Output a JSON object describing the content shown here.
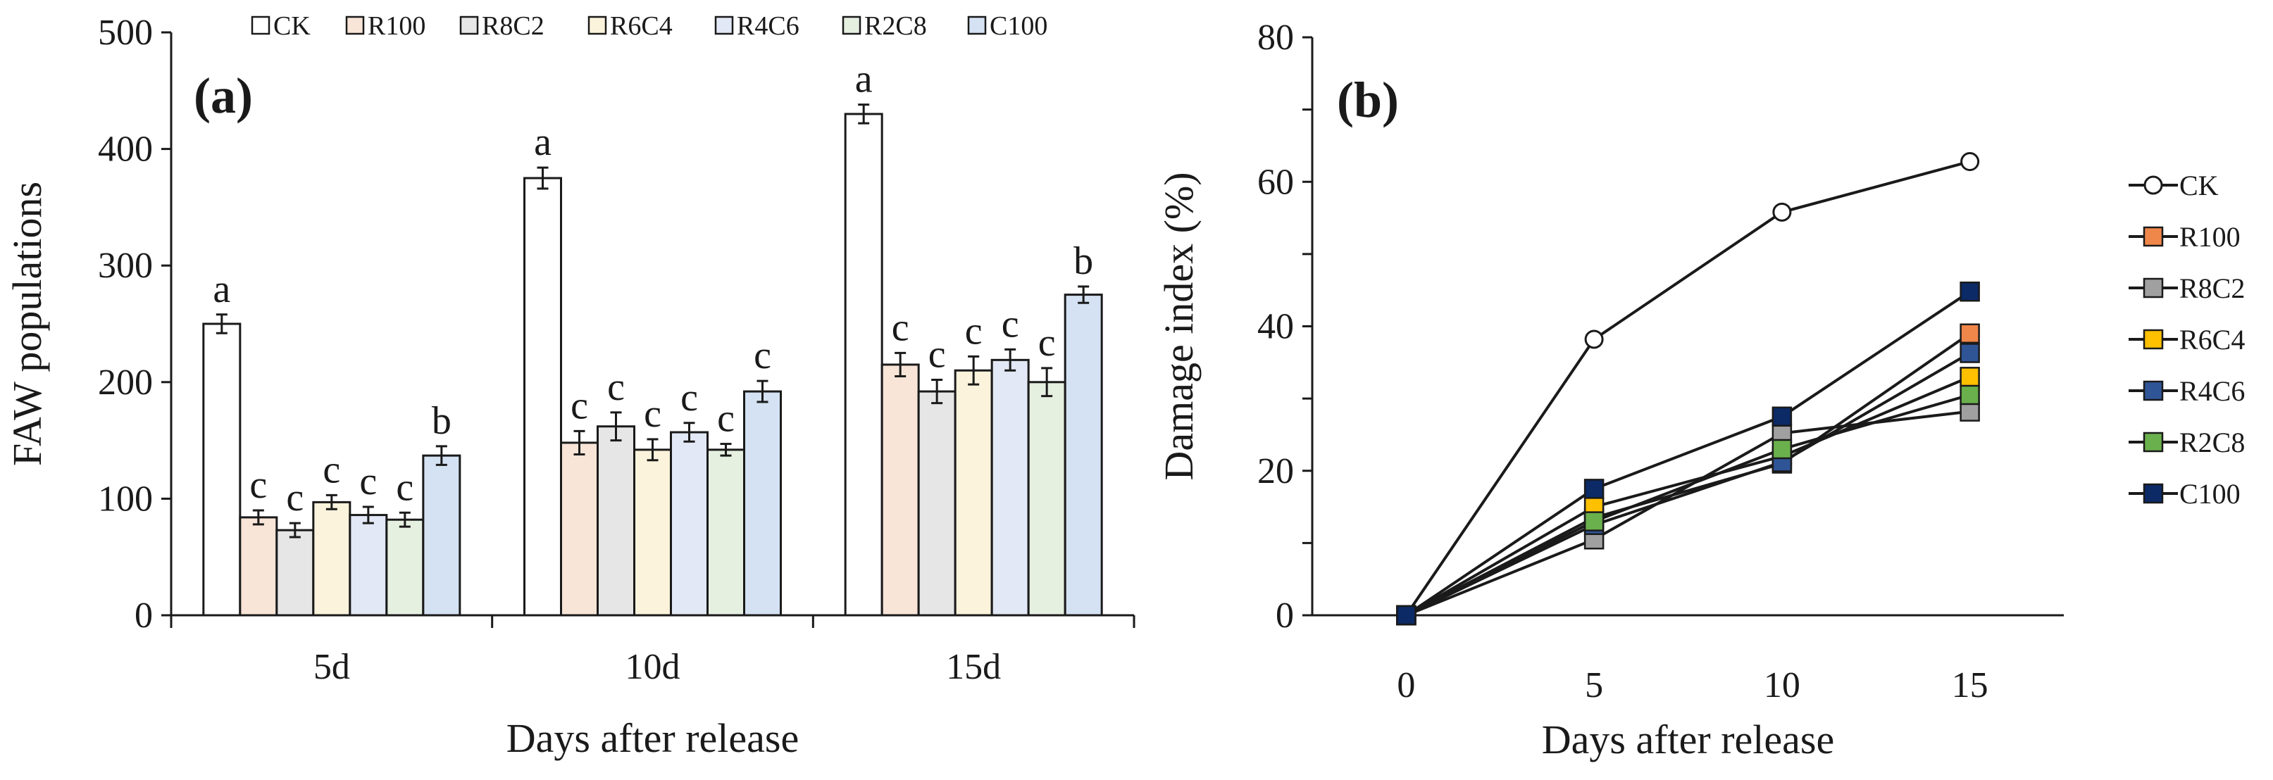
{
  "chart_data": [
    {
      "type": "bar",
      "panel_label": "(a)",
      "title": "",
      "xlabel": "Days after release",
      "ylabel": "FAW populations",
      "ylim": [
        0,
        500
      ],
      "yticks": [
        "0",
        "100",
        "200",
        "300",
        "400",
        "500"
      ],
      "categories": [
        "5d",
        "10d",
        "15d"
      ],
      "legend_position": "top",
      "error_bars": true,
      "series": [
        {
          "name": "CK",
          "color": "#ffffff",
          "values": [
            250,
            375,
            430
          ],
          "errors": [
            8,
            9,
            8
          ],
          "letters": [
            "a",
            "a",
            "a"
          ]
        },
        {
          "name": "R100",
          "color": "#f8e5d8",
          "values": [
            84,
            148,
            215
          ],
          "errors": [
            6,
            10,
            10
          ],
          "letters": [
            "c",
            "c",
            "c"
          ]
        },
        {
          "name": "R8C2",
          "color": "#e6e6e6",
          "values": [
            73,
            162,
            192
          ],
          "errors": [
            6,
            12,
            10
          ],
          "letters": [
            "c",
            "c",
            "c"
          ]
        },
        {
          "name": "R6C4",
          "color": "#fcf3dc",
          "values": [
            97,
            142,
            210
          ],
          "errors": [
            6,
            9,
            12
          ],
          "letters": [
            "c",
            "c",
            "c"
          ]
        },
        {
          "name": "R4C6",
          "color": "#e2e8f5",
          "values": [
            86,
            157,
            219
          ],
          "errors": [
            7,
            8,
            9
          ],
          "letters": [
            "c",
            "c",
            "c"
          ]
        },
        {
          "name": "R2C8",
          "color": "#e6f0e1",
          "values": [
            82,
            142,
            200
          ],
          "errors": [
            6,
            5,
            12
          ],
          "letters": [
            "c",
            "c",
            "c"
          ]
        },
        {
          "name": "C100",
          "color": "#d4e2f3",
          "values": [
            137,
            192,
            275
          ],
          "errors": [
            8,
            9,
            7
          ],
          "letters": [
            "b",
            "c",
            "b"
          ]
        }
      ]
    },
    {
      "type": "line",
      "panel_label": "(b)",
      "title": "",
      "xlabel": "Days after release",
      "ylabel": "Damage index (%)",
      "x": [
        0,
        5,
        10,
        15
      ],
      "xticks": [
        "0",
        "5",
        "10",
        "15"
      ],
      "xlim": [
        -2.5,
        17.5
      ],
      "ylim": [
        0,
        80
      ],
      "yticks": [
        "0",
        "20",
        "40",
        "60",
        "80"
      ],
      "legend_position": "right",
      "series": [
        {
          "name": "CK",
          "color": "#ffffff",
          "marker": "circle",
          "values": [
            0,
            38.2,
            55.8,
            62.8
          ]
        },
        {
          "name": "R100",
          "color": "#f0874a",
          "marker": "square",
          "values": [
            0,
            13.5,
            21.0,
            39.0
          ]
        },
        {
          "name": "R8C2",
          "color": "#a0a0a0",
          "marker": "square",
          "values": [
            0,
            10.5,
            25.2,
            28.2
          ]
        },
        {
          "name": "R6C4",
          "color": "#ffc000",
          "marker": "square",
          "values": [
            0,
            15.0,
            22.0,
            33.0
          ]
        },
        {
          "name": "R4C6",
          "color": "#2f5597",
          "marker": "square",
          "values": [
            0,
            12.5,
            21.2,
            36.3
          ]
        },
        {
          "name": "R2C8",
          "color": "#6ab04c",
          "marker": "square",
          "values": [
            0,
            13.0,
            23.0,
            30.5
          ]
        },
        {
          "name": "C100",
          "color": "#0b2a66",
          "marker": "square",
          "values": [
            0,
            17.5,
            27.5,
            44.8
          ]
        }
      ]
    }
  ]
}
